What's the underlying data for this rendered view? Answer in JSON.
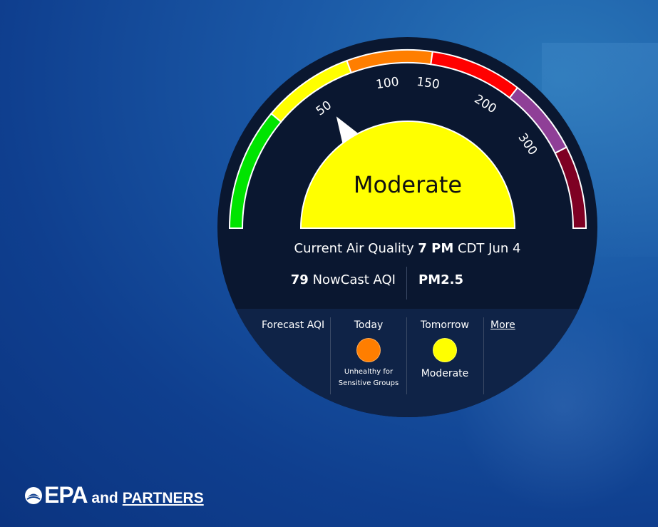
{
  "gauge": {
    "category": "Moderate",
    "category_color": "#ffff00",
    "aqi_value": 79,
    "scale_max": 500,
    "ticks": [
      "50",
      "100",
      "150",
      "200",
      "300"
    ],
    "bands": [
      {
        "color": "#00e400"
      },
      {
        "color": "#ffff00"
      },
      {
        "color": "#ff7e00"
      },
      {
        "color": "#ff0000"
      },
      {
        "color": "#8f3f97"
      },
      {
        "color": "#7e0023"
      }
    ]
  },
  "current": {
    "prefix": "Current Air Quality",
    "time": "7 PM",
    "suffix": "CDT Jun 4"
  },
  "nowcast": {
    "value": "79",
    "label": "NowCast AQI",
    "pollutant": "PM2.5"
  },
  "forecast": {
    "title": "Forecast AQI",
    "today": {
      "day": "Today",
      "category": "Unhealthy for Sensitive Groups",
      "color": "#ff7e00"
    },
    "tomorrow": {
      "day": "Tomorrow",
      "category": "Moderate",
      "color": "#ffff00"
    },
    "more_label": "More"
  },
  "footer": {
    "brand": "EPA",
    "and": "and",
    "partners": "PARTNERS"
  }
}
